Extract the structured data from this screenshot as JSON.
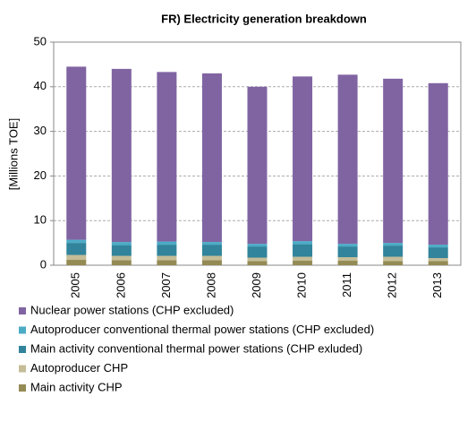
{
  "chart_data": {
    "type": "stacked_bar",
    "title": "FR) Electricity generation breakdown",
    "y_label": "[Millions TOE]",
    "categories": [
      "2005",
      "2006",
      "2007",
      "2008",
      "2009",
      "2010",
      "2011",
      "2012",
      "2013"
    ],
    "series": [
      {
        "name": "Main activity CHP",
        "color": "#948a54",
        "values": [
          1.2,
          1.1,
          1.1,
          1.1,
          0.9,
          1.0,
          1.0,
          0.9,
          0.9
        ]
      },
      {
        "name": "Autoproducer CHP",
        "color": "#c4bd97",
        "values": [
          1.1,
          1.0,
          1.0,
          1.0,
          0.8,
          0.9,
          0.8,
          1.0,
          0.7
        ]
      },
      {
        "name": "Main activity conventional thermal power stations (CHP exluded)",
        "color": "#31849b",
        "values": [
          2.7,
          2.4,
          2.5,
          2.5,
          2.5,
          2.8,
          2.4,
          2.5,
          2.4
        ]
      },
      {
        "name": "Autoproducer conventional thermal power stations (CHP excluded)",
        "color": "#4bacc6",
        "values": [
          0.7,
          0.7,
          0.7,
          0.6,
          0.6,
          0.7,
          0.6,
          0.6,
          0.6
        ]
      },
      {
        "name": "Nuclear power stations (CHP excluded)",
        "color": "#8064a2",
        "values": [
          38.8,
          38.8,
          38.0,
          37.8,
          35.2,
          36.9,
          37.9,
          36.8,
          36.2
        ]
      }
    ],
    "ylim": [
      0,
      50
    ],
    "yticks": [
      0,
      10,
      20,
      30,
      40,
      50
    ],
    "grid": true
  }
}
